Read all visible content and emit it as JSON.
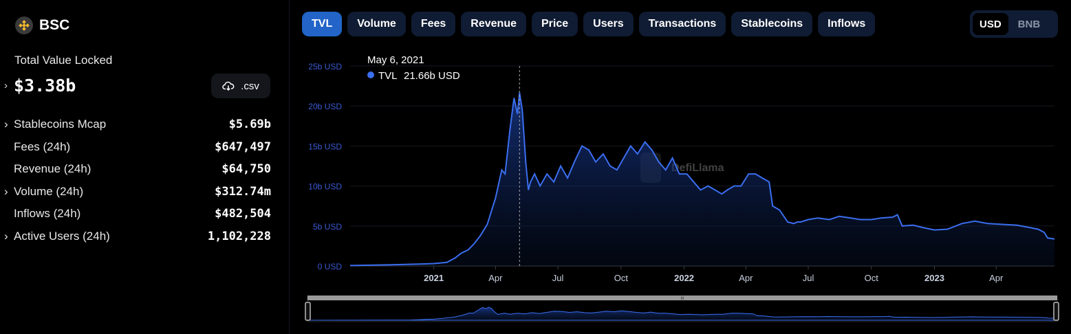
{
  "sidebar": {
    "chain_name": "BSC",
    "chain_icon": "bnb-chain-icon",
    "tvl_label": "Total Value Locked",
    "tvl_value": "$3.38b",
    "csv_label": ".csv",
    "stats": [
      {
        "label": "Stablecoins Mcap",
        "value": "$5.69b",
        "expandable": true
      },
      {
        "label": "Fees (24h)",
        "value": "$647,497",
        "expandable": false
      },
      {
        "label": "Revenue (24h)",
        "value": "$64,750",
        "expandable": false
      },
      {
        "label": "Volume (24h)",
        "value": "$312.74m",
        "expandable": true
      },
      {
        "label": "Inflows (24h)",
        "value": "$482,504",
        "expandable": false
      },
      {
        "label": "Active Users (24h)",
        "value": "1,102,228",
        "expandable": true
      }
    ]
  },
  "tabs": [
    "TVL",
    "Volume",
    "Fees",
    "Revenue",
    "Price",
    "Users",
    "Transactions",
    "Stablecoins",
    "Inflows"
  ],
  "active_tab": "TVL",
  "currency_options": [
    "USD",
    "BNB"
  ],
  "active_currency": "USD",
  "colors": {
    "accent": "#2264c8",
    "line": "#3b6ef0",
    "tab_bg": "#0f1c33"
  },
  "watermark": "DefiLlama",
  "tooltip": {
    "date": "May 6, 2021",
    "series": "TVL",
    "value": "21.66b USD"
  },
  "chart_data": {
    "type": "area",
    "series": [
      {
        "name": "TVL",
        "unit": "USD"
      }
    ],
    "x": [
      "2020-09-01",
      "2020-11-01",
      "2020-12-15",
      "2021-01-01",
      "2021-01-20",
      "2021-02-01",
      "2021-02-10",
      "2021-02-20",
      "2021-03-01",
      "2021-03-10",
      "2021-03-20",
      "2021-04-01",
      "2021-04-10",
      "2021-04-15",
      "2021-04-22",
      "2021-04-28",
      "2021-05-03",
      "2021-05-06",
      "2021-05-10",
      "2021-05-15",
      "2021-05-19",
      "2021-05-22",
      "2021-05-28",
      "2021-06-05",
      "2021-06-15",
      "2021-06-25",
      "2021-07-05",
      "2021-07-15",
      "2021-07-25",
      "2021-08-05",
      "2021-08-15",
      "2021-08-25",
      "2021-09-05",
      "2021-09-15",
      "2021-09-25",
      "2021-10-05",
      "2021-10-15",
      "2021-10-25",
      "2021-11-05",
      "2021-11-15",
      "2021-11-25",
      "2021-12-05",
      "2021-12-15",
      "2021-12-25",
      "2022-01-05",
      "2022-01-15",
      "2022-01-25",
      "2022-02-05",
      "2022-02-15",
      "2022-02-25",
      "2022-03-05",
      "2022-03-15",
      "2022-03-25",
      "2022-04-05",
      "2022-04-15",
      "2022-04-25",
      "2022-05-05",
      "2022-05-10",
      "2022-05-20",
      "2022-06-01",
      "2022-06-10",
      "2022-06-15",
      "2022-06-20",
      "2022-07-01",
      "2022-07-15",
      "2022-08-01",
      "2022-08-15",
      "2022-09-01",
      "2022-09-15",
      "2022-10-01",
      "2022-10-15",
      "2022-11-01",
      "2022-11-08",
      "2022-11-15",
      "2022-12-01",
      "2022-12-15",
      "2023-01-01",
      "2023-01-20",
      "2023-02-10",
      "2023-03-01",
      "2023-03-20",
      "2023-04-10",
      "2023-05-01",
      "2023-05-20",
      "2023-06-01",
      "2023-06-10",
      "2023-06-15",
      "2023-06-25"
    ],
    "values": [
      0.05,
      0.15,
      0.25,
      0.3,
      0.45,
      1.0,
      1.6,
      2.0,
      2.8,
      3.8,
      5.2,
      8.5,
      12.0,
      11.5,
      17.0,
      21.0,
      19.0,
      21.66,
      19.5,
      13.0,
      9.5,
      10.5,
      11.5,
      10.0,
      11.5,
      10.5,
      12.5,
      11.0,
      13.0,
      15.0,
      14.5,
      13.0,
      14.0,
      12.5,
      12.0,
      13.5,
      15.0,
      14.0,
      15.5,
      14.5,
      13.0,
      12.0,
      13.5,
      11.5,
      11.5,
      10.5,
      9.5,
      10.0,
      9.5,
      9.0,
      9.5,
      10.0,
      10.0,
      11.5,
      11.5,
      11.0,
      10.5,
      7.5,
      7.0,
      5.5,
      5.3,
      5.5,
      5.5,
      5.8,
      6.0,
      5.8,
      6.2,
      6.0,
      5.8,
      5.8,
      6.0,
      6.1,
      6.4,
      5.0,
      5.1,
      4.8,
      4.5,
      4.6,
      5.3,
      5.6,
      5.3,
      5.2,
      5.1,
      4.8,
      4.6,
      4.2,
      3.5,
      3.38
    ],
    "y_ticks": [
      "0 USD",
      "5b USD",
      "10b USD",
      "15b USD",
      "20b USD",
      "25b USD"
    ],
    "ylim": [
      0,
      25
    ],
    "x_tick_labels": [
      "2021",
      "Apr",
      "Jul",
      "Oct",
      "2022",
      "Apr",
      "Jul",
      "Oct",
      "2023",
      "Apr"
    ],
    "x_tick_dates": [
      "2021-01-01",
      "2021-04-01",
      "2021-07-01",
      "2021-10-01",
      "2022-01-01",
      "2022-04-01",
      "2022-07-01",
      "2022-10-01",
      "2023-01-01",
      "2023-04-01"
    ],
    "x_range": [
      "2020-09-01",
      "2023-06-25"
    ],
    "grid": true
  }
}
